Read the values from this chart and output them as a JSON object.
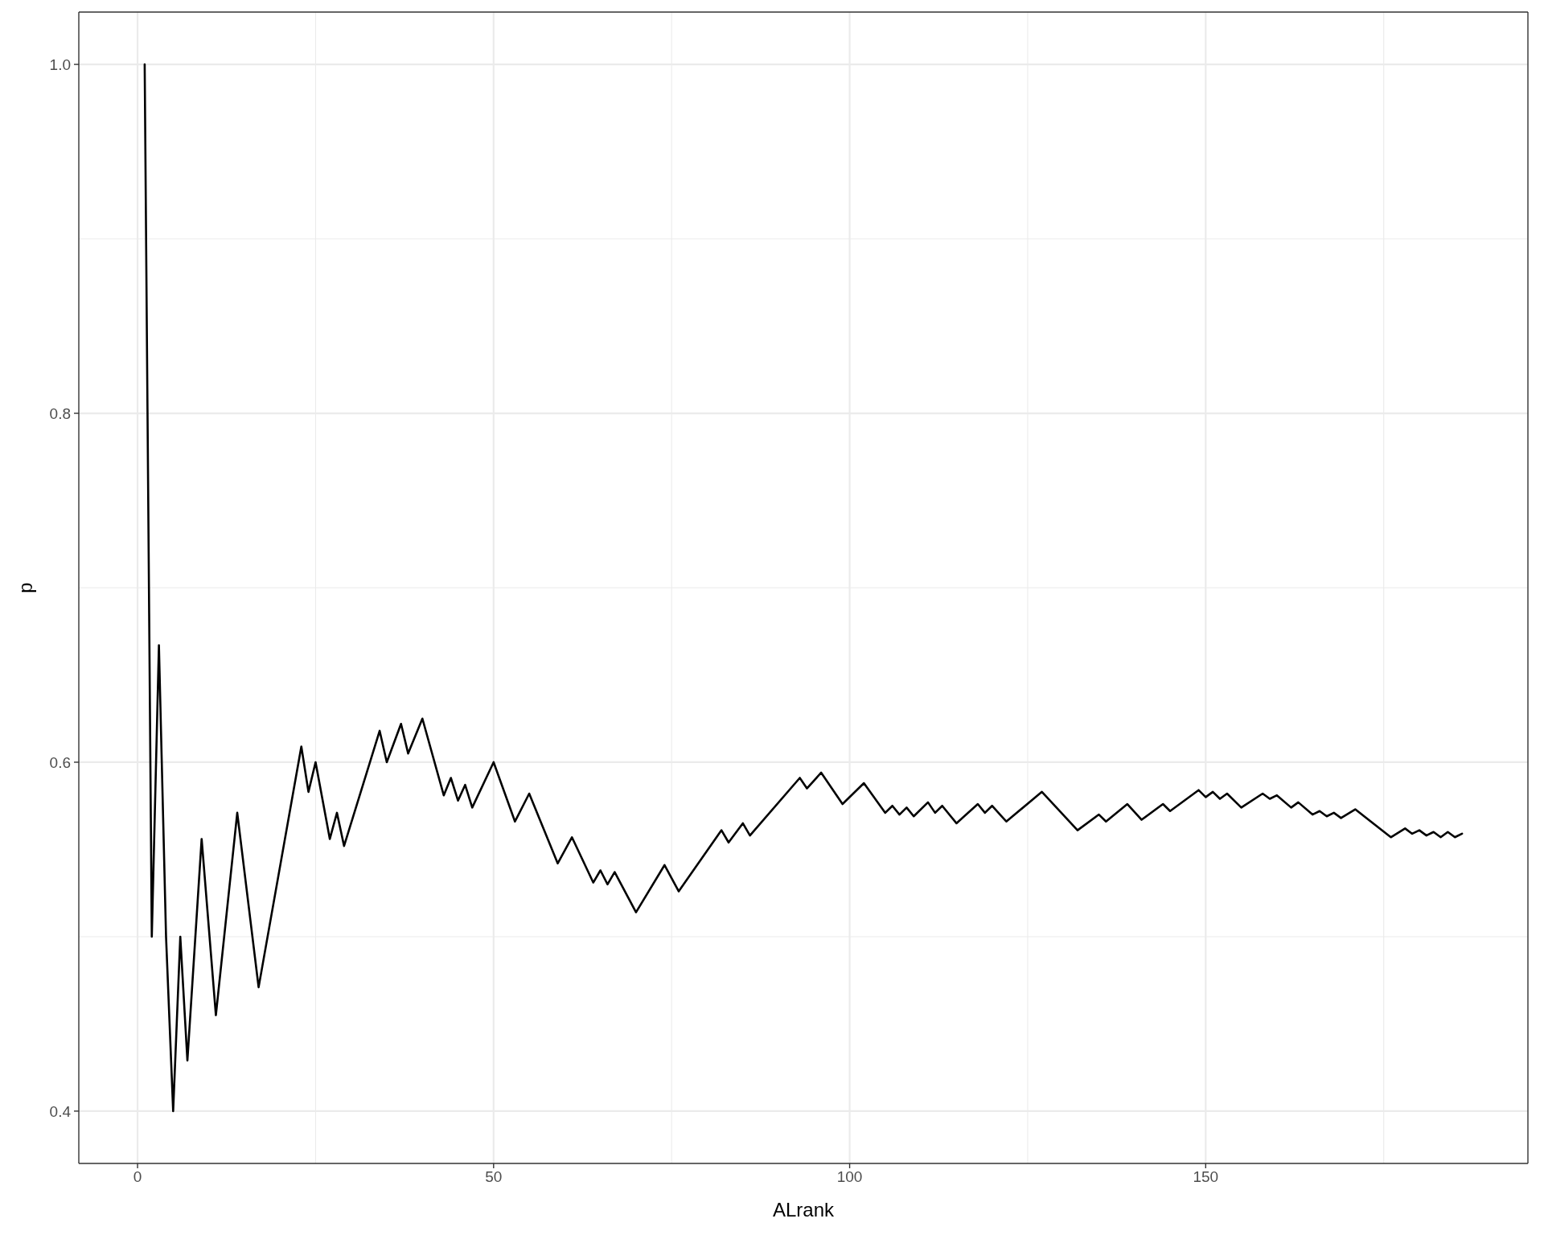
{
  "chart_data": {
    "type": "line",
    "xlabel": "ALrank",
    "ylabel": "p",
    "x": [
      1,
      2,
      3,
      4,
      5,
      6,
      7,
      9,
      11,
      14,
      17,
      23,
      24,
      25,
      27,
      28,
      29,
      34,
      35,
      37,
      38,
      40,
      43,
      44,
      45,
      46,
      47,
      50,
      53,
      55,
      59,
      61,
      64,
      65,
      66,
      67,
      70,
      74,
      76,
      82,
      83,
      85,
      86,
      93,
      94,
      96,
      99,
      102,
      105,
      106,
      107,
      108,
      109,
      111,
      112,
      113,
      115,
      118,
      119,
      120,
      122,
      127,
      132,
      135,
      136,
      139,
      141,
      144,
      145,
      149,
      150,
      151,
      152,
      153,
      155,
      158,
      159,
      160,
      162,
      163,
      165,
      166,
      167,
      168,
      169,
      171,
      176,
      178,
      179,
      180,
      181,
      182,
      183,
      184,
      185,
      186
    ],
    "series": [
      {
        "color": "#000000",
        "values": [
          1,
          0.5,
          0.667,
          0.5,
          0.4,
          0.5,
          0.429,
          0.556,
          0.455,
          0.571,
          0.471,
          0.609,
          0.583,
          0.6,
          0.556,
          0.571,
          0.552,
          0.618,
          0.6,
          0.622,
          0.605,
          0.625,
          0.581,
          0.591,
          0.578,
          0.587,
          0.574,
          0.6,
          0.566,
          0.582,
          0.542,
          0.557,
          0.531,
          0.538,
          0.53,
          0.537,
          0.514,
          0.541,
          0.526,
          0.561,
          0.554,
          0.565,
          0.558,
          0.591,
          0.585,
          0.594,
          0.576,
          0.588,
          0.571,
          0.575,
          0.57,
          0.574,
          0.569,
          0.577,
          0.571,
          0.575,
          0.565,
          0.576,
          0.571,
          0.575,
          0.566,
          0.583,
          0.561,
          0.57,
          0.566,
          0.576,
          0.567,
          0.576,
          0.572,
          0.584,
          0.58,
          0.583,
          0.579,
          0.582,
          0.574,
          0.582,
          0.579,
          0.581,
          0.574,
          0.577,
          0.57,
          0.572,
          0.569,
          0.571,
          0.568,
          0.573,
          0.557,
          0.562,
          0.559,
          0.561,
          0.558,
          0.56,
          0.557,
          0.56,
          0.557,
          0.559
        ]
      }
    ],
    "xlim": [
      -8.25,
      195.25
    ],
    "ylim": [
      0.37,
      1.03
    ],
    "xticks": [
      0,
      50,
      100,
      150
    ],
    "yticks": [
      0.4,
      0.6,
      0.8,
      {
        "value": 1,
        "label": "1.0"
      }
    ],
    "grid": true
  }
}
